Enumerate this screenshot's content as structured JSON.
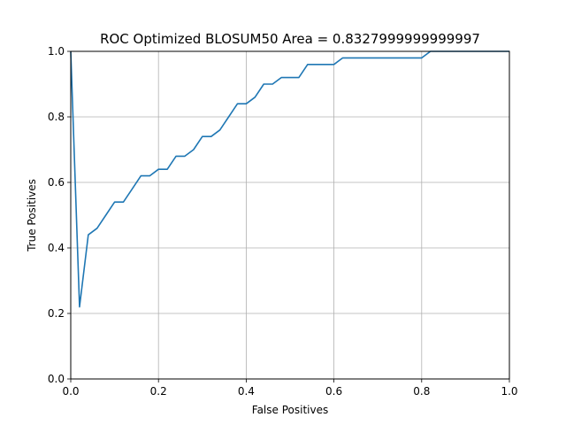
{
  "chart_data": {
    "type": "line",
    "title": "ROC Optimized BLOSUM50 Area = 0.8327999999999997",
    "xlabel": "False Positives",
    "ylabel": "True Positives",
    "xlim": [
      0,
      1
    ],
    "ylim": [
      0,
      1
    ],
    "x_ticks": [
      "0.0",
      "0.2",
      "0.4",
      "0.6",
      "0.8",
      "1.0"
    ],
    "y_ticks": [
      "0.0",
      "0.2",
      "0.4",
      "0.6",
      "0.8",
      "1.0"
    ],
    "grid": true,
    "line_color": "#1f77b4",
    "series": [
      {
        "x": [
          0.0,
          0.02,
          0.04,
          0.06,
          0.08,
          0.1,
          0.12,
          0.14,
          0.16,
          0.18,
          0.2,
          0.22,
          0.24,
          0.26,
          0.28,
          0.3,
          0.32,
          0.34,
          0.36,
          0.38,
          0.4,
          0.42,
          0.44,
          0.46,
          0.48,
          0.5,
          0.52,
          0.54,
          0.56,
          0.58,
          0.6,
          0.62,
          0.64,
          0.66,
          0.68,
          0.7,
          0.72,
          0.74,
          0.76,
          0.78,
          0.8,
          0.82,
          1.0
        ],
        "y": [
          1.0,
          0.22,
          0.44,
          0.46,
          0.5,
          0.54,
          0.54,
          0.58,
          0.62,
          0.62,
          0.64,
          0.64,
          0.68,
          0.68,
          0.7,
          0.74,
          0.74,
          0.76,
          0.8,
          0.84,
          0.84,
          0.86,
          0.9,
          0.9,
          0.92,
          0.92,
          0.92,
          0.96,
          0.96,
          0.96,
          0.96,
          0.98,
          0.98,
          0.98,
          0.98,
          0.98,
          0.98,
          0.98,
          0.98,
          0.98,
          0.98,
          1.0,
          1.0
        ]
      }
    ]
  }
}
